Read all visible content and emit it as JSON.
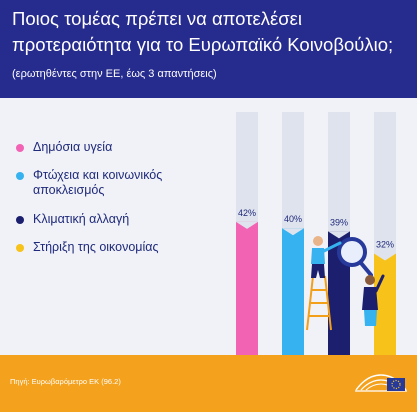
{
  "header": {
    "title": "Ποιος τομέας πρέπει να αποτελέσει προτεραιότητα για το Ευρωπαϊκό Κοινοβούλιο;",
    "subtitle": "(ερωτηθέντες στην ΕΕ, έως 3 απαντήσεις)"
  },
  "legend": {
    "items": [
      {
        "label": "Δημόσια υγεία",
        "color": "#f263b4"
      },
      {
        "label": "Φτώχεια και κοινωνικός αποκλεισμός",
        "color": "#35b2ef"
      },
      {
        "label": "Κλιματική αλλαγή",
        "color": "#1b1f6e"
      },
      {
        "label": "Στήριξη της οικονομίας",
        "color": "#f7c21a"
      }
    ]
  },
  "footer": {
    "source": "Πηγή: Ευρωβαρόμετρο ΕΚ (96.2)"
  },
  "logo": {
    "icon": "european-parliament-logo",
    "color": "#273a9c"
  },
  "chart_data": {
    "type": "bar",
    "categories": [
      "Δημόσια υγεία",
      "Φτώχεια και κοινωνικός αποκλεισμός",
      "Κλιματική αλλαγή",
      "Στήριξη της οικονομίας"
    ],
    "values": [
      42,
      40,
      39,
      32
    ],
    "value_labels": [
      "42%",
      "40%",
      "39%",
      "32%"
    ],
    "colors": [
      "#f263b4",
      "#35b2ef",
      "#1b1f6e",
      "#f7c21a"
    ],
    "ylim": [
      0,
      100
    ],
    "grid": false,
    "legend": "left"
  }
}
